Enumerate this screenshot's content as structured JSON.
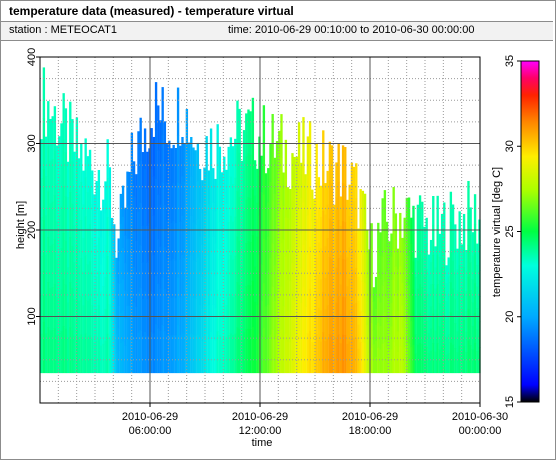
{
  "header": {
    "title": "temperature data (measured) - temperature virtual",
    "station_label": "station : METEOCAT1",
    "time_label": "time: 2010-06-29 00:10:00 to 2010-06-30 00:00:00"
  },
  "chart_data": {
    "type": "heatmap",
    "xlabel": "time",
    "ylabel": "height [m]",
    "colorbar_label": "temperature virtual [deg C]",
    "x_ticks": [
      {
        "hours": 6,
        "line1": "2010-06-29",
        "line2": "06:00:00"
      },
      {
        "hours": 12,
        "line1": "2010-06-29",
        "line2": "12:00:00"
      },
      {
        "hours": 18,
        "line1": "2010-06-29",
        "line2": "18:00:00"
      },
      {
        "hours": 24,
        "line1": "2010-06-30",
        "line2": "00:00:00"
      }
    ],
    "xlim_hours": [
      0,
      24
    ],
    "ylim": [
      0,
      400
    ],
    "y_ticks": [
      100,
      200,
      300,
      400
    ],
    "colorbar_range": [
      15,
      35
    ],
    "colorbar_ticks": [
      15,
      20,
      25,
      30,
      35
    ],
    "data_bottom_height_m": 35,
    "grid": true,
    "columns": [
      {
        "t_hours": 0.2,
        "top_m": 350,
        "temperature_c": 24.3
      },
      {
        "t_hours": 2.0,
        "top_m": 290,
        "temperature_c": 24.0
      },
      {
        "t_hours": 3.7,
        "top_m": 260,
        "temperature_c": 23.6
      },
      {
        "t_hours": 4.2,
        "top_m": 180,
        "temperature_c": 20.5
      },
      {
        "t_hours": 5.0,
        "top_m": 280,
        "temperature_c": 19.8
      },
      {
        "t_hours": 6.2,
        "top_m": 345,
        "temperature_c": 19.3
      },
      {
        "t_hours": 7.0,
        "top_m": 320,
        "temperature_c": 19.8
      },
      {
        "t_hours": 7.7,
        "top_m": 345,
        "temperature_c": 20.3
      },
      {
        "t_hours": 8.5,
        "top_m": 300,
        "temperature_c": 21.5
      },
      {
        "t_hours": 9.5,
        "top_m": 300,
        "temperature_c": 23.2
      },
      {
        "t_hours": 10.5,
        "top_m": 310,
        "temperature_c": 24.0
      },
      {
        "t_hours": 11.5,
        "top_m": 315,
        "temperature_c": 25.0
      },
      {
        "t_hours": 12.5,
        "top_m": 300,
        "temperature_c": 26.8
      },
      {
        "t_hours": 13.5,
        "top_m": 290,
        "temperature_c": 28.5
      },
      {
        "t_hours": 14.5,
        "top_m": 285,
        "temperature_c": 29.5
      },
      {
        "t_hours": 15.5,
        "top_m": 275,
        "temperature_c": 30.8
      },
      {
        "t_hours": 16.5,
        "top_m": 270,
        "temperature_c": 31.2
      },
      {
        "t_hours": 17.3,
        "top_m": 240,
        "temperature_c": 30.3
      },
      {
        "t_hours": 18.0,
        "top_m": 170,
        "temperature_c": 27.3
      },
      {
        "t_hours": 18.7,
        "top_m": 205,
        "temperature_c": 27.0
      },
      {
        "t_hours": 19.7,
        "top_m": 220,
        "temperature_c": 28.0
      },
      {
        "t_hours": 20.5,
        "top_m": 210,
        "temperature_c": 24.5
      },
      {
        "t_hours": 21.5,
        "top_m": 195,
        "temperature_c": 24.2
      },
      {
        "t_hours": 22.5,
        "top_m": 210,
        "temperature_c": 24.3
      },
      {
        "t_hours": 23.5,
        "top_m": 215,
        "temperature_c": 24.4
      }
    ]
  }
}
